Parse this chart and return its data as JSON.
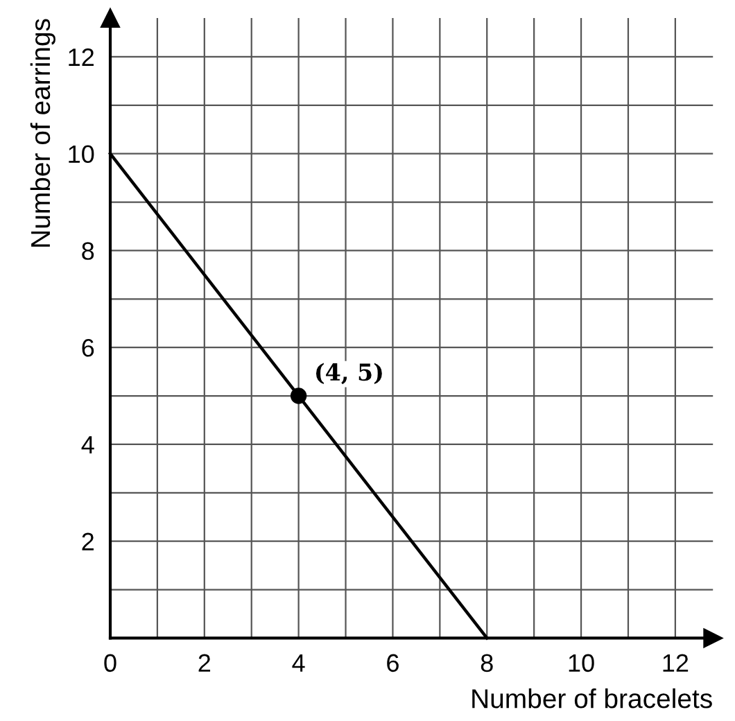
{
  "chart_data": {
    "type": "line",
    "xlabel": "Number of bracelets",
    "ylabel": "Number of earrings",
    "series": [
      {
        "color": "#000000",
        "x": [
          0,
          8
        ],
        "values": [
          10,
          0
        ]
      },
      {
        "type": "scatter",
        "color": "#000000",
        "x": [
          4
        ],
        "values": [
          5
        ]
      }
    ],
    "annotations": [
      {
        "text": "(4, 5)",
        "x": 4,
        "y": 5
      }
    ],
    "xlim": [
      0,
      12.8
    ],
    "ylim": [
      0,
      12.8
    ],
    "xticks": [
      0,
      {
        "value": 1,
        "label": null
      },
      2,
      {
        "value": 3,
        "label": null
      },
      4,
      {
        "value": 5,
        "label": null
      },
      6,
      {
        "value": 7,
        "label": null
      },
      8,
      {
        "value": 9,
        "label": null
      },
      10,
      {
        "value": 11,
        "label": null
      },
      12
    ],
    "yticks": [
      {
        "value": 1,
        "label": null
      },
      2,
      {
        "value": 3,
        "label": null
      },
      4,
      {
        "value": 5,
        "label": null
      },
      6,
      {
        "value": 7,
        "label": null
      },
      8,
      {
        "value": 9,
        "label": null
      },
      10,
      {
        "value": 11,
        "label": null
      },
      12
    ],
    "grid": true,
    "legend": false
  }
}
